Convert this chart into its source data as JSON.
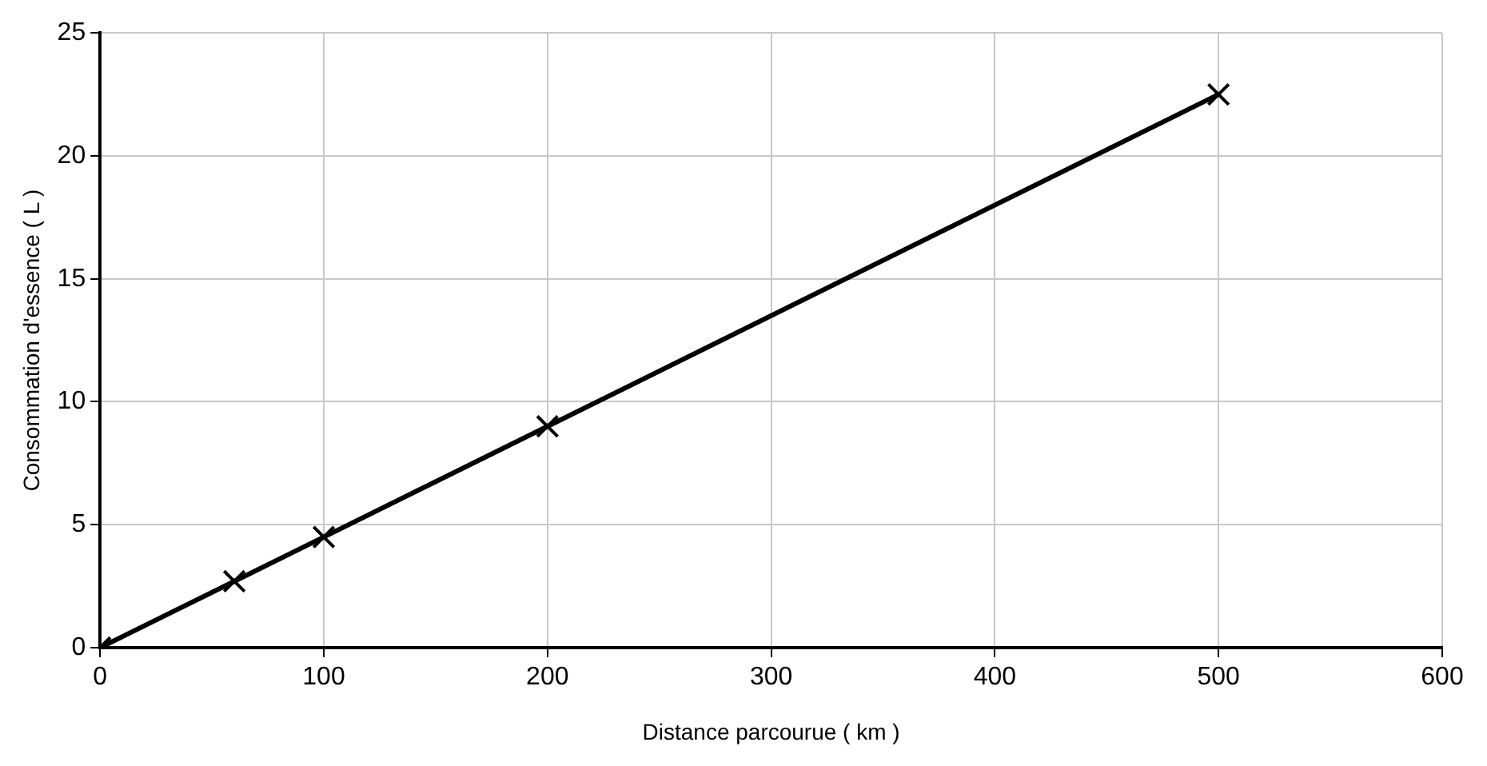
{
  "chart_data": {
    "type": "line",
    "xlabel": "Distance parcourue ( km )",
    "ylabel": "Consommation d'essence ( L )",
    "x": [
      0,
      60,
      100,
      200,
      500
    ],
    "series": [
      {
        "color": "#000000",
        "values": [
          0,
          2.7,
          4.5,
          9,
          22.5
        ]
      }
    ],
    "xlim": [
      0,
      600
    ],
    "xticks": [
      0,
      100,
      200,
      300,
      400,
      500,
      600
    ],
    "ylim": [
      0,
      25
    ],
    "yticks": [
      0,
      5,
      10,
      15,
      20,
      25
    ],
    "grid": true,
    "legend": false,
    "marker": "cross",
    "line_style": "solid"
  }
}
